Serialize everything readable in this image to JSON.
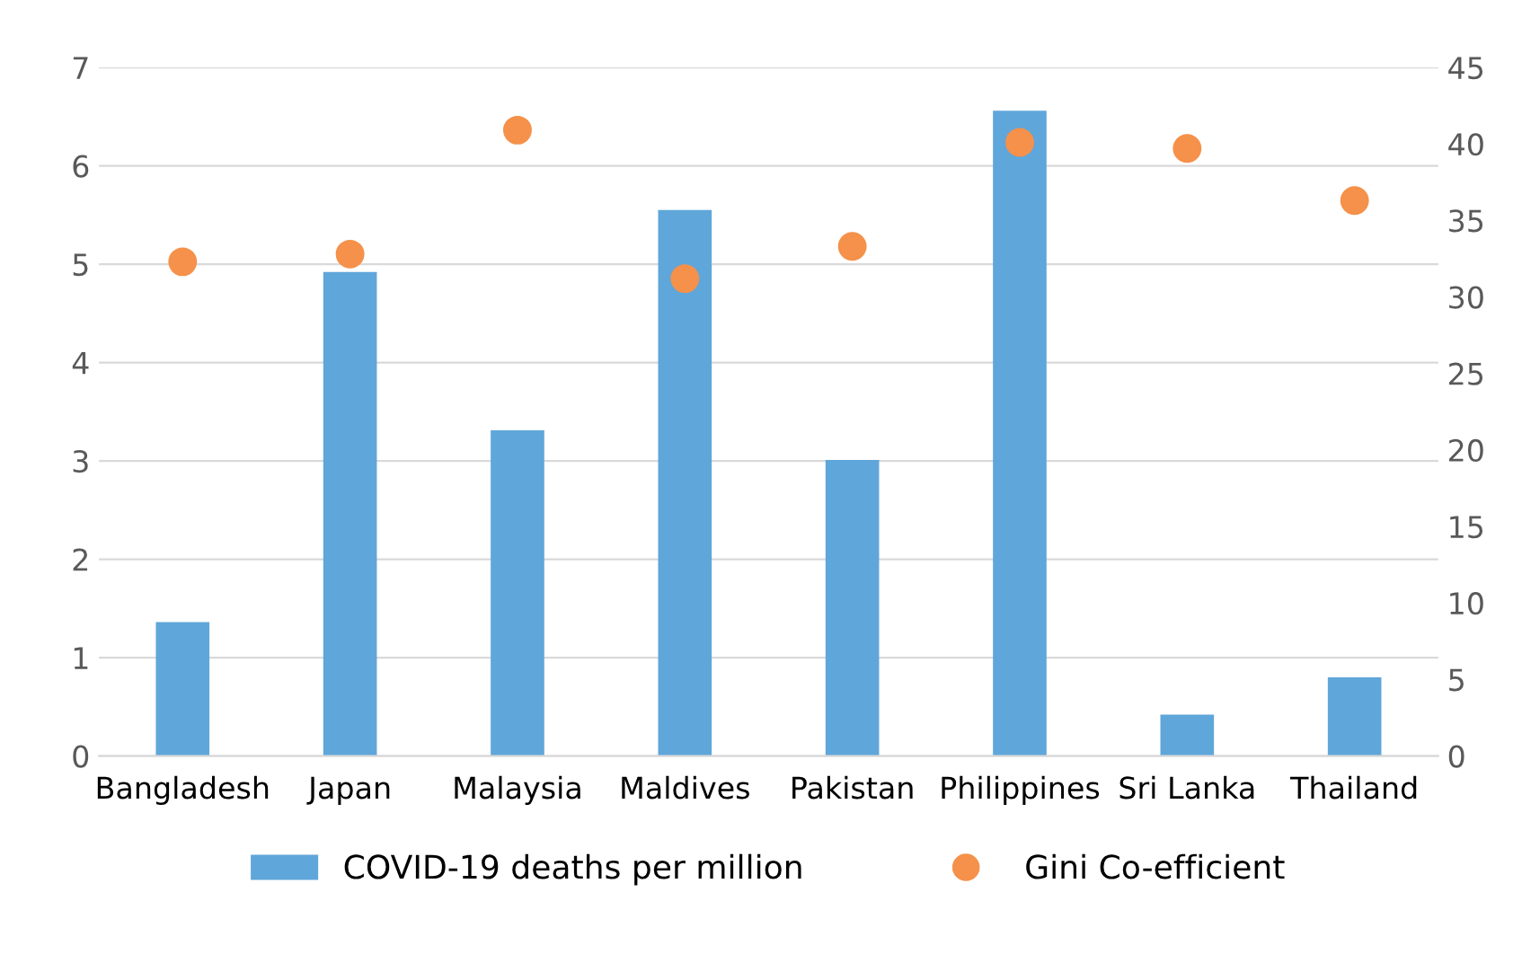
{
  "chart_data": {
    "type": "bar",
    "categories": [
      "Bangladesh",
      "Japan",
      "Malaysia",
      "Maldives",
      "Pakistan",
      "Philippines",
      "Sri Lanka",
      "Thailand"
    ],
    "series": [
      {
        "name": "COVID-19 deaths per million",
        "color": "#5fa6da",
        "values": [
          1.36,
          4.92,
          3.31,
          5.55,
          3.01,
          6.56,
          0.42,
          0.8
        ]
      },
      {
        "name": "Gini Co-efficient",
        "type": "scatter",
        "axis": "y2",
        "color": "#f5914a",
        "values": [
          32.3,
          32.8,
          40.9,
          31.2,
          33.3,
          40.1,
          39.7,
          36.3
        ]
      }
    ],
    "ylim": [
      0,
      7
    ],
    "yticks": [
      0,
      1,
      2,
      3,
      4,
      5,
      6,
      7
    ],
    "y2lim": [
      0,
      45
    ],
    "y2ticks": [
      0,
      5,
      10,
      15,
      20,
      25,
      30,
      35,
      40,
      45
    ],
    "grid": "y",
    "legend": "bottom",
    "marker": "circle"
  }
}
